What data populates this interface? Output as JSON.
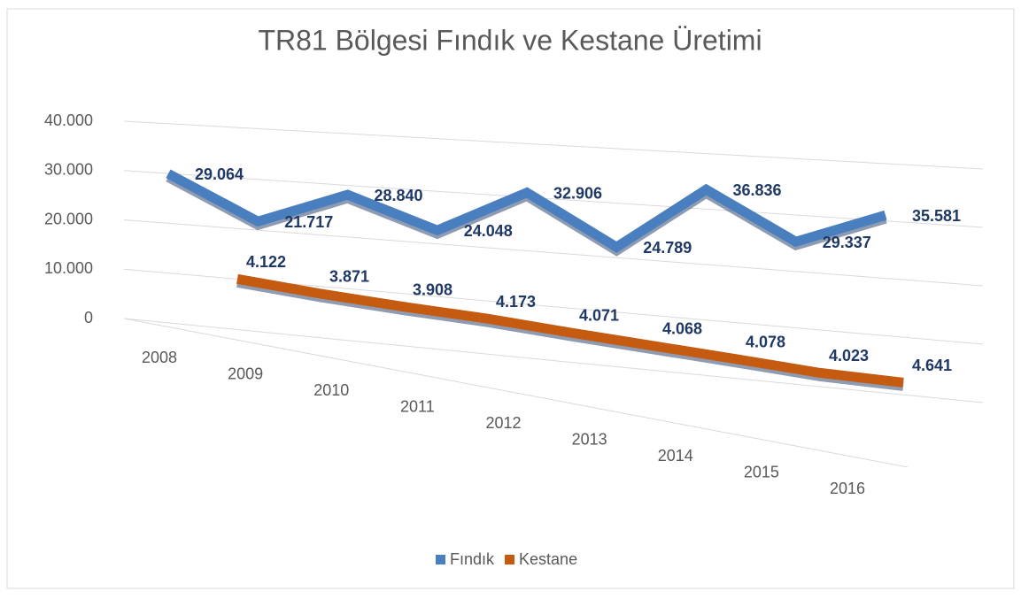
{
  "chart_data": {
    "type": "line3d",
    "title": "TR81 Bölgesi Fındık ve Kestane Üretimi",
    "categories": [
      "2008",
      "2009",
      "2010",
      "2011",
      "2012",
      "2013",
      "2014",
      "2015",
      "2016"
    ],
    "series": [
      {
        "name": "Fındık",
        "color": "#4a7fbf",
        "values": [
          29064,
          21717,
          28840,
          24048,
          32906,
          24789,
          36836,
          29337,
          35581
        ],
        "value_labels": [
          "29.064",
          "21.717",
          "28.840",
          "24.048",
          "32.906",
          "24.789",
          "36.836",
          "29.337",
          "35.581"
        ]
      },
      {
        "name": "Kestane",
        "color": "#c55a11",
        "values": [
          4122,
          3871,
          3908,
          4173,
          4071,
          4068,
          4078,
          4023,
          4641
        ],
        "value_labels": [
          "4.122",
          "3.871",
          "3.908",
          "4.173",
          "4.071",
          "4.068",
          "4.078",
          "4.023",
          "4.641"
        ]
      }
    ],
    "ylim": [
      0,
      40000
    ],
    "yticks": [
      0,
      {
        "value": 10000,
        "label": "10.000"
      },
      {
        "value": 20000,
        "label": "20.000"
      },
      {
        "value": 30000,
        "label": "30.000"
      },
      {
        "value": 40000,
        "label": "40.000"
      }
    ],
    "grid": true,
    "legend": "bottom"
  }
}
